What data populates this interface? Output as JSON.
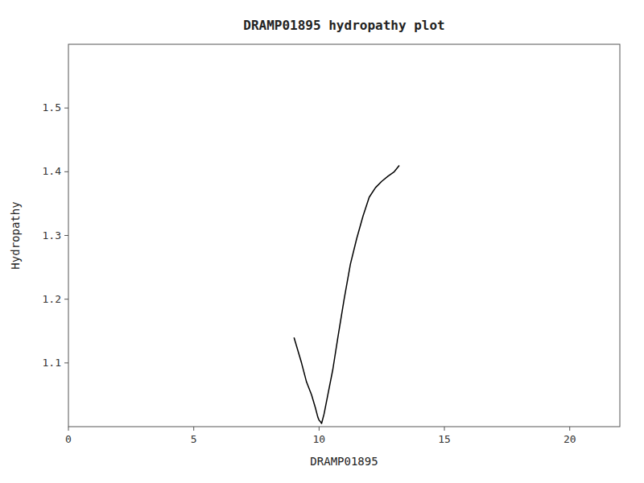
{
  "chart_data": {
    "type": "line",
    "title": "DRAMP01895 hydropathy plot",
    "xlabel": "DRAMP01895",
    "ylabel": "Hydropathy",
    "x": [
      9.0,
      9.15,
      9.3,
      9.5,
      9.7,
      9.85,
      9.95,
      10.0,
      10.05,
      10.1,
      10.2,
      10.35,
      10.55,
      10.75,
      11.0,
      11.25,
      11.5,
      11.75,
      12.0,
      12.25,
      12.5,
      12.75,
      13.0,
      13.2
    ],
    "values": [
      1.14,
      1.12,
      1.1,
      1.07,
      1.05,
      1.03,
      1.015,
      1.01,
      1.008,
      1.005,
      1.02,
      1.05,
      1.09,
      1.14,
      1.2,
      1.255,
      1.295,
      1.33,
      1.36,
      1.375,
      1.385,
      1.393,
      1.4,
      1.41
    ],
    "color": "#000000",
    "xlim": [
      0,
      22
    ],
    "ylim": [
      1.0,
      1.6
    ],
    "xticks": [
      0,
      5,
      10,
      15,
      20
    ],
    "yticks": [
      1.1,
      1.2,
      1.3,
      1.4,
      1.5
    ],
    "grid": false
  }
}
